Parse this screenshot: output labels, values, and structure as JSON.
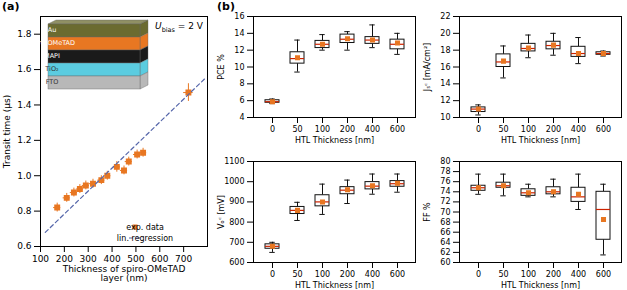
{
  "chart_data": [
    {
      "type": "scatter",
      "title": "(a)",
      "xlabel": "Thickness of spiro-OMeTAD\nlayer (nm)",
      "ylabel": "Transit time (µs)",
      "xlim": [
        100,
        800
      ],
      "ylim": [
        0.6,
        1.9
      ],
      "xticks": [
        100,
        200,
        300,
        400,
        500,
        600,
        700
      ],
      "yticks": [
        0.6,
        0.8,
        {
          "value": 1.0,
          "label": "1.0"
        },
        1.2,
        1.4,
        1.6,
        1.8
      ],
      "legend": "lower right",
      "series": [
        {
          "name": "exp. data",
          "type": "scatter",
          "marker": "square",
          "color": "#E87722",
          "x": [
            170,
            210,
            240,
            265,
            290,
            320,
            355,
            380,
            420,
            450,
            470,
            505,
            530,
            720
          ],
          "values": [
            0.82,
            0.875,
            0.905,
            0.925,
            0.945,
            0.955,
            0.975,
            1.0,
            1.05,
            1.03,
            1.08,
            1.12,
            1.13,
            1.47
          ],
          "xerr": [
            15,
            15,
            15,
            15,
            15,
            15,
            15,
            15,
            15,
            15,
            15,
            15,
            15,
            20
          ],
          "yerr": [
            0.025,
            0.025,
            0.025,
            0.025,
            0.025,
            0.025,
            0.025,
            0.025,
            0.03,
            0.025,
            0.025,
            0.025,
            0.025,
            0.05
          ]
        },
        {
          "name": "lin. regression",
          "type": "line",
          "line_style": "dashed",
          "color": "#5566AA",
          "x": [
            120,
            790
          ],
          "values": [
            0.68,
            1.55
          ]
        }
      ],
      "annotations": [
        {
          "text": "U",
          "subscript": "bias",
          "suffix": " = 2 V"
        }
      ],
      "inset_layers": [
        {
          "name": "Au",
          "color": "#6B6B30"
        },
        {
          "name": "spiro-OMeTAD",
          "color": "#E87722"
        },
        {
          "name": "MAPI",
          "color": "#1a1a1a"
        },
        {
          "name": "TiO₂",
          "color": "#5BCCE0"
        },
        {
          "name": "FTO",
          "color": "#B8B8B8"
        }
      ]
    },
    {
      "type": "box",
      "title": "(b)",
      "categories": [
        "0",
        "50",
        "100",
        "200",
        "400",
        "600"
      ],
      "medians": [
        5.88,
        11.0,
        12.7,
        13.3,
        13.2,
        12.7
      ],
      "q1": [
        5.75,
        10.4,
        12.25,
        12.85,
        12.75,
        12.1
      ],
      "q3": [
        6.05,
        11.75,
        13.1,
        13.85,
        13.55,
        13.25
      ],
      "whislo": [
        5.65,
        9.4,
        12.0,
        12.0,
        12.3,
        11.5
      ],
      "whishi": [
        6.2,
        13.2,
        13.85,
        14.2,
        15.0,
        14.0
      ],
      "means": [
        5.88,
        11.1,
        12.7,
        13.35,
        13.2,
        12.85
      ],
      "xlabel": "HTL Thickness [nm]",
      "ylabel": "PCE %",
      "ylim": [
        4,
        16
      ],
      "yticks": [
        4,
        6,
        8,
        10,
        12,
        14,
        16
      ],
      "color": "#111111",
      "median_color": "#CC2200",
      "mean_color": "#E87722",
      "marker": "square"
    },
    {
      "type": "box",
      "categories": [
        "0",
        "50",
        "100",
        "200",
        "400",
        "600"
      ],
      "medians": [
        11.0,
        16.6,
        18.2,
        18.55,
        17.6,
        17.6
      ],
      "q1": [
        10.65,
        16.0,
        17.85,
        18.1,
        17.2,
        17.45
      ],
      "q3": [
        11.2,
        17.5,
        18.75,
        19.0,
        18.4,
        17.75
      ],
      "whislo": [
        10.3,
        14.7,
        17.1,
        17.4,
        16.4,
        17.3
      ],
      "whishi": [
        11.5,
        18.5,
        19.8,
        20.0,
        19.5,
        17.9
      ],
      "means": [
        11.0,
        16.7,
        18.25,
        18.6,
        17.6,
        17.6
      ],
      "xlabel": "HTL Thickness [nm]",
      "ylabel": "Jₛᶜ [mA/cm²]",
      "ylim": [
        10,
        22
      ],
      "yticks": [
        10,
        12,
        14,
        16,
        18,
        20,
        22
      ],
      "color": "#111111",
      "median_color": "#CC2200",
      "mean_color": "#E87722",
      "marker": "square"
    },
    {
      "type": "box",
      "categories": [
        "0",
        "50",
        "100",
        "200",
        "400",
        "600"
      ],
      "medians": [
        680,
        858,
        900,
        958,
        978,
        990
      ],
      "q1": [
        668,
        840,
        878,
        938,
        962,
        975
      ],
      "q3": [
        690,
        875,
        933,
        973,
        998,
        1003
      ],
      "whislo": [
        650,
        808,
        838,
        892,
        938,
        948
      ],
      "whishi": [
        700,
        898,
        988,
        1008,
        1038,
        1038
      ],
      "means": [
        680,
        858,
        900,
        960,
        980,
        992
      ],
      "xlabel": "HTL Thickness [nm]",
      "ylabel": "Vₒᶜ [mV]",
      "ylim": [
        600,
        1100
      ],
      "yticks": [
        600,
        700,
        800,
        900,
        1000,
        1100
      ],
      "color": "#111111",
      "median_color": "#CC2200",
      "mean_color": "#E87722",
      "marker": "square"
    },
    {
      "type": "box",
      "categories": [
        "0",
        "50",
        "100",
        "200",
        "400",
        "600"
      ],
      "medians": [
        74.8,
        75.2,
        73.8,
        74.0,
        73.0,
        70.5
      ],
      "q1": [
        74.2,
        74.8,
        73.2,
        73.5,
        72.0,
        64.5
      ],
      "q3": [
        75.2,
        75.8,
        74.5,
        74.9,
        74.8,
        74.0
      ],
      "whislo": [
        73.5,
        73.2,
        73.0,
        73.0,
        70.5,
        61.5
      ],
      "whishi": [
        77.5,
        77.5,
        75.5,
        76.5,
        77.5,
        75.5
      ],
      "means": [
        74.8,
        75.2,
        73.8,
        74.0,
        73.5,
        68.5
      ],
      "xlabel": "HTL Thickness [nm]",
      "ylabel": "FF %",
      "ylim": [
        60,
        80
      ],
      "yticks": [
        60,
        62,
        64,
        66,
        68,
        70,
        72,
        74,
        76,
        78,
        80
      ],
      "color": "#111111",
      "median_color": "#CC2200",
      "mean_color": "#E87722",
      "marker": "square"
    }
  ]
}
